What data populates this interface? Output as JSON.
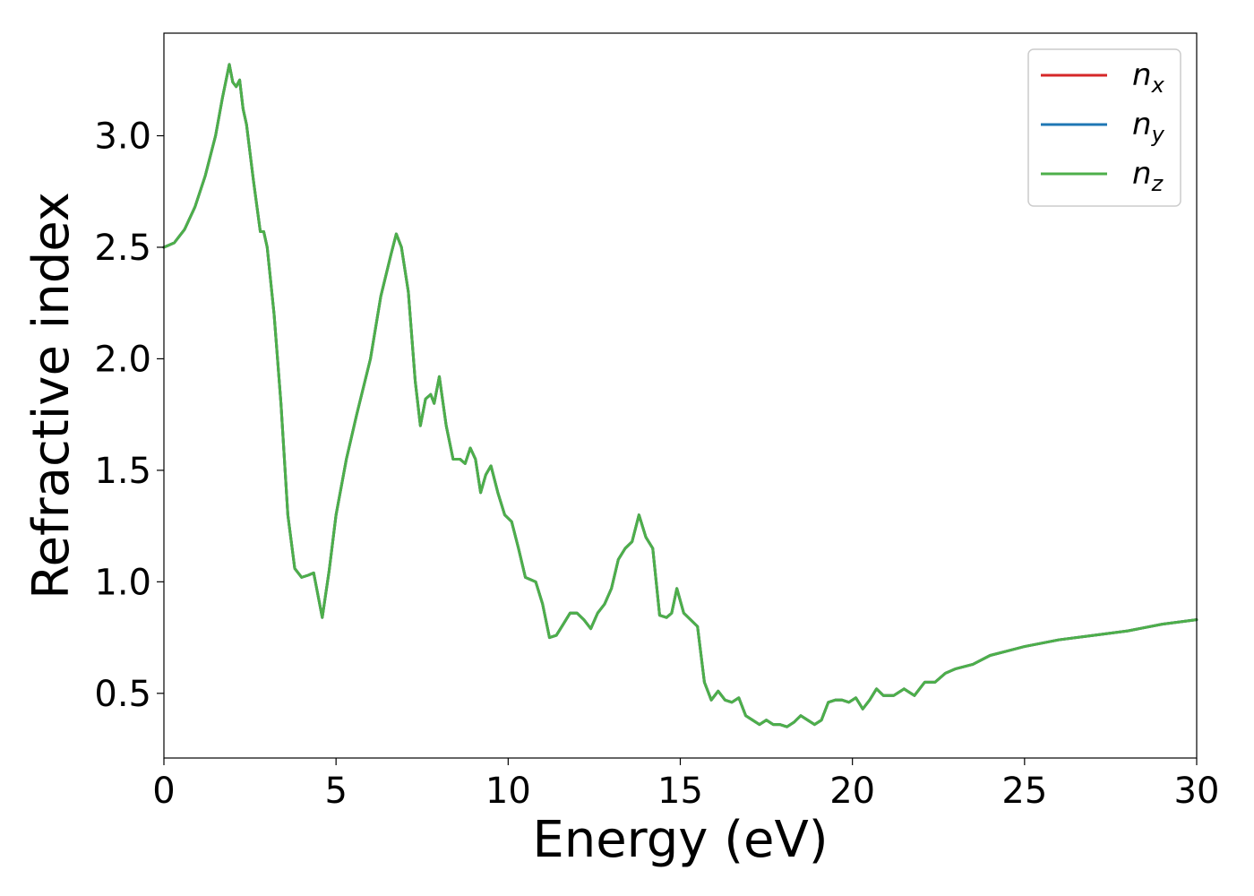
{
  "chart_data": {
    "type": "line",
    "title": "",
    "xlabel": "Energy (eV)",
    "ylabel": "Refractive index",
    "xlim": [
      0,
      30
    ],
    "ylim": [
      0.21,
      3.46
    ],
    "xticks": [
      0,
      5,
      10,
      15,
      20,
      25,
      30
    ],
    "yticks": [
      0.5,
      1.0,
      1.5,
      2.0,
      2.5,
      3.0
    ],
    "xtick_labels": [
      "0",
      "5",
      "10",
      "15",
      "20",
      "25",
      "30"
    ],
    "ytick_labels": [
      "0.5",
      "1.0",
      "1.5",
      "2.0",
      "2.5",
      "3.0"
    ],
    "grid": false,
    "legend_position": "top-right",
    "legend": [
      {
        "base": "n",
        "sub": "x",
        "color": "#d62728"
      },
      {
        "base": "n",
        "sub": "y",
        "color": "#1f77b4"
      },
      {
        "base": "n",
        "sub": "z",
        "color": "#4daf4a"
      }
    ],
    "note": "All three series overlap; nz is drawn on top.",
    "x": [
      0,
      0.3,
      0.6,
      0.9,
      1.2,
      1.5,
      1.7,
      1.9,
      2.0,
      2.1,
      2.2,
      2.3,
      2.4,
      2.6,
      2.8,
      2.9,
      3.0,
      3.2,
      3.4,
      3.6,
      3.8,
      4.0,
      4.2,
      4.35,
      4.5,
      4.6,
      4.8,
      5.0,
      5.3,
      5.6,
      6.0,
      6.3,
      6.6,
      6.75,
      6.9,
      7.1,
      7.3,
      7.45,
      7.6,
      7.75,
      7.85,
      8.0,
      8.2,
      8.4,
      8.6,
      8.75,
      8.9,
      9.05,
      9.2,
      9.35,
      9.5,
      9.7,
      9.9,
      10.1,
      10.3,
      10.5,
      10.8,
      11.0,
      11.2,
      11.4,
      11.6,
      11.8,
      12.0,
      12.2,
      12.4,
      12.6,
      12.8,
      13.0,
      13.2,
      13.4,
      13.6,
      13.8,
      14.0,
      14.2,
      14.4,
      14.6,
      14.75,
      14.9,
      15.1,
      15.3,
      15.5,
      15.7,
      15.9,
      16.1,
      16.3,
      16.5,
      16.7,
      16.9,
      17.1,
      17.3,
      17.5,
      17.7,
      17.9,
      18.1,
      18.3,
      18.5,
      18.7,
      18.9,
      19.1,
      19.3,
      19.5,
      19.7,
      19.9,
      20.1,
      20.3,
      20.5,
      20.7,
      20.9,
      21.2,
      21.5,
      21.8,
      22.1,
      22.4,
      22.7,
      23.0,
      23.5,
      24.0,
      24.5,
      25.0,
      26.0,
      27.0,
      28.0,
      29.0,
      30.0
    ],
    "series": [
      {
        "name": "nx",
        "color": "#d62728",
        "y": [
          2.5,
          2.52,
          2.58,
          2.68,
          2.82,
          3.0,
          3.17,
          3.32,
          3.24,
          3.22,
          3.25,
          3.12,
          3.05,
          2.8,
          2.57,
          2.57,
          2.5,
          2.2,
          1.8,
          1.3,
          1.06,
          1.02,
          1.03,
          1.04,
          0.92,
          0.84,
          1.05,
          1.3,
          1.55,
          1.75,
          2.0,
          2.28,
          2.47,
          2.56,
          2.5,
          2.3,
          1.9,
          1.7,
          1.82,
          1.84,
          1.8,
          1.92,
          1.7,
          1.55,
          1.55,
          1.53,
          1.6,
          1.55,
          1.4,
          1.48,
          1.52,
          1.4,
          1.3,
          1.27,
          1.15,
          1.02,
          1.0,
          0.9,
          0.75,
          0.76,
          0.81,
          0.86,
          0.86,
          0.83,
          0.79,
          0.86,
          0.9,
          0.97,
          1.1,
          1.15,
          1.18,
          1.3,
          1.2,
          1.15,
          0.85,
          0.84,
          0.86,
          0.97,
          0.86,
          0.83,
          0.8,
          0.55,
          0.47,
          0.51,
          0.47,
          0.46,
          0.48,
          0.4,
          0.38,
          0.36,
          0.38,
          0.36,
          0.36,
          0.35,
          0.37,
          0.4,
          0.38,
          0.36,
          0.38,
          0.46,
          0.47,
          0.47,
          0.46,
          0.48,
          0.43,
          0.47,
          0.52,
          0.49,
          0.49,
          0.52,
          0.49,
          0.55,
          0.55,
          0.59,
          0.61,
          0.63,
          0.67,
          0.69,
          0.71,
          0.74,
          0.76,
          0.78,
          0.81,
          0.83
        ]
      },
      {
        "name": "ny",
        "color": "#1f77b4",
        "y": [
          2.5,
          2.52,
          2.58,
          2.68,
          2.82,
          3.0,
          3.17,
          3.32,
          3.24,
          3.22,
          3.25,
          3.12,
          3.05,
          2.8,
          2.57,
          2.57,
          2.5,
          2.2,
          1.8,
          1.3,
          1.06,
          1.02,
          1.03,
          1.04,
          0.92,
          0.84,
          1.05,
          1.3,
          1.55,
          1.75,
          2.0,
          2.28,
          2.47,
          2.56,
          2.5,
          2.3,
          1.9,
          1.7,
          1.82,
          1.84,
          1.8,
          1.92,
          1.7,
          1.55,
          1.55,
          1.53,
          1.6,
          1.55,
          1.4,
          1.48,
          1.52,
          1.4,
          1.3,
          1.27,
          1.15,
          1.02,
          1.0,
          0.9,
          0.75,
          0.76,
          0.81,
          0.86,
          0.86,
          0.83,
          0.79,
          0.86,
          0.9,
          0.97,
          1.1,
          1.15,
          1.18,
          1.3,
          1.2,
          1.15,
          0.85,
          0.84,
          0.86,
          0.97,
          0.86,
          0.83,
          0.8,
          0.55,
          0.47,
          0.51,
          0.47,
          0.46,
          0.48,
          0.4,
          0.38,
          0.36,
          0.38,
          0.36,
          0.36,
          0.35,
          0.37,
          0.4,
          0.38,
          0.36,
          0.38,
          0.46,
          0.47,
          0.47,
          0.46,
          0.48,
          0.43,
          0.47,
          0.52,
          0.49,
          0.49,
          0.52,
          0.49,
          0.55,
          0.55,
          0.59,
          0.61,
          0.63,
          0.67,
          0.69,
          0.71,
          0.74,
          0.76,
          0.78,
          0.81,
          0.83
        ]
      },
      {
        "name": "nz",
        "color": "#4daf4a",
        "y": [
          2.5,
          2.52,
          2.58,
          2.68,
          2.82,
          3.0,
          3.17,
          3.32,
          3.24,
          3.22,
          3.25,
          3.12,
          3.05,
          2.8,
          2.57,
          2.57,
          2.5,
          2.2,
          1.8,
          1.3,
          1.06,
          1.02,
          1.03,
          1.04,
          0.92,
          0.84,
          1.05,
          1.3,
          1.55,
          1.75,
          2.0,
          2.28,
          2.47,
          2.56,
          2.5,
          2.3,
          1.9,
          1.7,
          1.82,
          1.84,
          1.8,
          1.92,
          1.7,
          1.55,
          1.55,
          1.53,
          1.6,
          1.55,
          1.4,
          1.48,
          1.52,
          1.4,
          1.3,
          1.27,
          1.15,
          1.02,
          1.0,
          0.9,
          0.75,
          0.76,
          0.81,
          0.86,
          0.86,
          0.83,
          0.79,
          0.86,
          0.9,
          0.97,
          1.1,
          1.15,
          1.18,
          1.3,
          1.2,
          1.15,
          0.85,
          0.84,
          0.86,
          0.97,
          0.86,
          0.83,
          0.8,
          0.55,
          0.47,
          0.51,
          0.47,
          0.46,
          0.48,
          0.4,
          0.38,
          0.36,
          0.38,
          0.36,
          0.36,
          0.35,
          0.37,
          0.4,
          0.38,
          0.36,
          0.38,
          0.46,
          0.47,
          0.47,
          0.46,
          0.48,
          0.43,
          0.47,
          0.52,
          0.49,
          0.49,
          0.52,
          0.49,
          0.55,
          0.55,
          0.59,
          0.61,
          0.63,
          0.67,
          0.69,
          0.71,
          0.74,
          0.76,
          0.78,
          0.81,
          0.83
        ]
      }
    ]
  }
}
